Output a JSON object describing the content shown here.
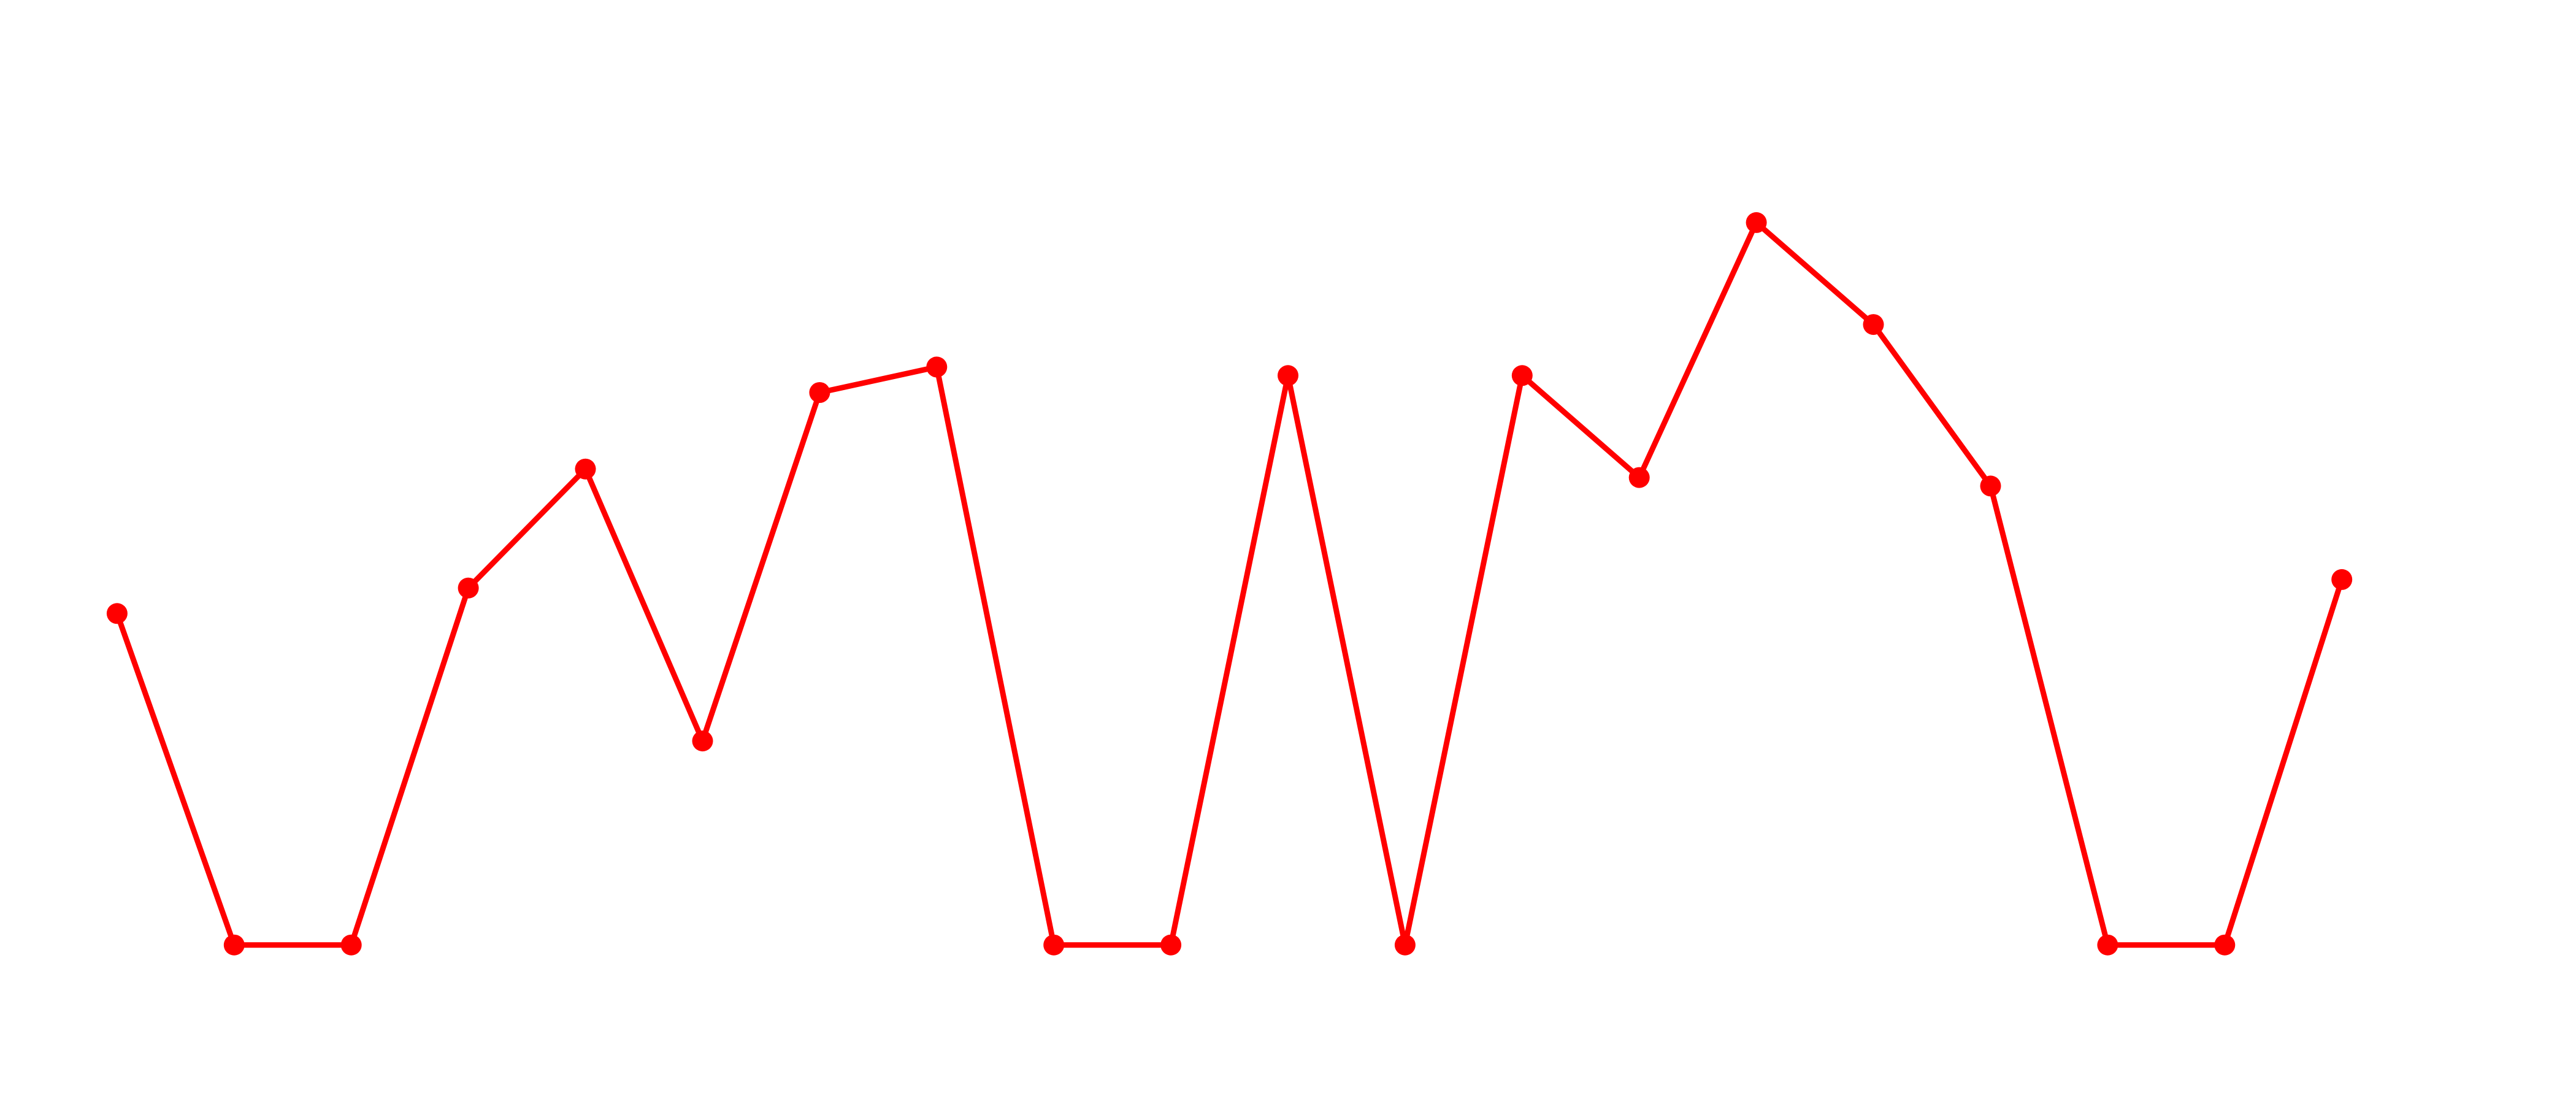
{
  "chart_data": {
    "type": "line",
    "title": "",
    "xlabel": "",
    "ylabel": "",
    "x": [
      1,
      2,
      3,
      4,
      5,
      6,
      7,
      8,
      9,
      10,
      11,
      12,
      13,
      14,
      15,
      16,
      17,
      18,
      19,
      20,
      21
    ],
    "y": [
      3.9,
      0,
      0,
      4.2,
      5.6,
      2.4,
      6.5,
      6.8,
      0,
      0,
      6.7,
      0,
      6.7,
      5.5,
      8.5,
      7.3,
      5.4,
      0,
      0,
      4.3,
      null
    ],
    "xlim": [
      0,
      22
    ],
    "ylim": [
      -0.5,
      10
    ],
    "grid": false,
    "axes_visible": false,
    "colors": {
      "line": "#ff0000",
      "marker": "#ff0000"
    }
  }
}
